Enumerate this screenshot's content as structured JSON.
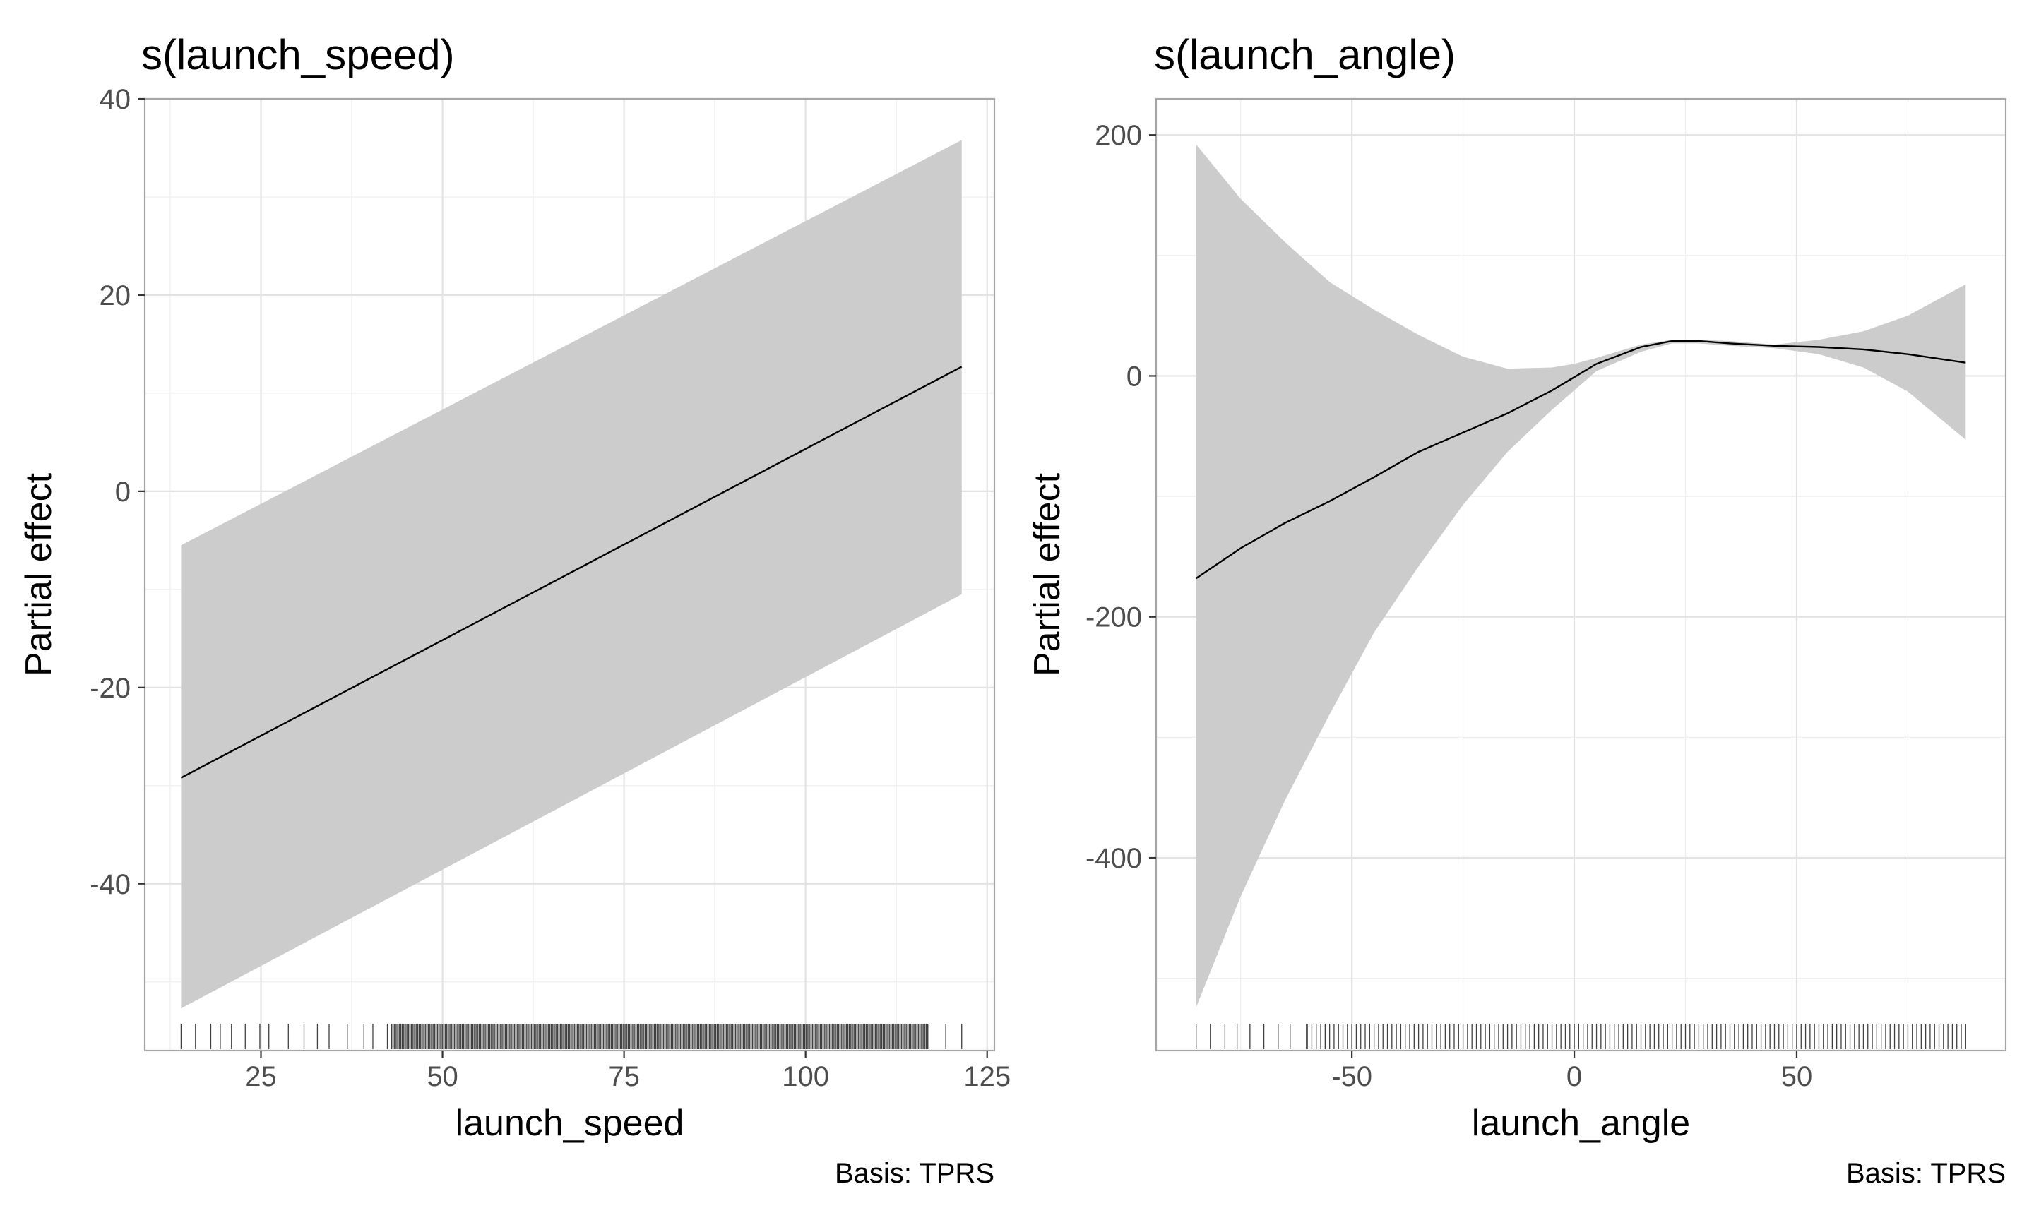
{
  "chart_data": [
    {
      "type": "line",
      "title": "s(launch_speed)",
      "xlabel": "launch_speed",
      "ylabel": "Partial effect",
      "caption": "Basis: TPRS",
      "xlim": [
        9,
        126
      ],
      "ylim": [
        -57,
        40
      ],
      "x_ticks": [
        25,
        50,
        75,
        100,
        125
      ],
      "x_tick_labels": [
        "25",
        "50",
        "75",
        "100",
        "125"
      ],
      "y_ticks": [
        -40,
        -20,
        0,
        20,
        40
      ],
      "y_tick_labels": [
        "-40",
        "-20",
        "0",
        "20",
        "40"
      ],
      "grid": true,
      "line": {
        "x": [
          14,
          121.5
        ],
        "y": [
          -29.2,
          12.7
        ]
      },
      "ribbon": {
        "x": [
          14,
          121.5
        ],
        "lower": [
          -52.7,
          -10.5
        ],
        "upper": [
          -5.5,
          35.8
        ]
      },
      "rug_range": [
        14,
        121.5
      ],
      "rug_dense_range": [
        43,
        117
      ],
      "colors": {
        "line": "#000000",
        "ribbon": "#cccccc",
        "grid": "#e3e3e3",
        "border": "#a6a6a6"
      }
    },
    {
      "type": "line",
      "title": "s(launch_angle)",
      "xlabel": "launch_angle",
      "ylabel": "Partial effect",
      "caption": "Basis: TPRS",
      "xlim": [
        -94,
        97
      ],
      "ylim": [
        -560,
        230
      ],
      "x_ticks": [
        -50,
        0,
        50
      ],
      "x_tick_labels": [
        "-50",
        "0",
        "50"
      ],
      "y_ticks": [
        -400,
        -200,
        0,
        200
      ],
      "y_tick_labels": [
        "-400",
        "-200",
        "0",
        "200"
      ],
      "grid": true,
      "line": {
        "x": [
          -85,
          -75,
          -65,
          -55,
          -45,
          -35,
          -25,
          -15,
          -5,
          0,
          5,
          15,
          22,
          28,
          35,
          45,
          55,
          65,
          75,
          88
        ],
        "y": [
          -168,
          -143,
          -122,
          -104,
          -84,
          -63,
          -47,
          -31,
          -12,
          -1,
          10,
          24,
          29,
          29,
          27,
          25,
          24,
          22,
          18,
          11
        ]
      },
      "ribbon": {
        "x": [
          -85,
          -75,
          -65,
          -55,
          -45,
          -35,
          -25,
          -15,
          -5,
          0,
          5,
          15,
          22,
          28,
          35,
          45,
          55,
          65,
          75,
          88
        ],
        "lower": [
          -524,
          -432,
          -352,
          -281,
          -213,
          -158,
          -107,
          -63,
          -28,
          -12,
          4,
          20,
          27,
          27,
          25,
          23,
          18,
          7,
          -13,
          -53
        ],
        "upper": [
          192,
          147,
          111,
          78,
          55,
          34,
          16,
          6,
          7,
          10,
          15,
          26,
          30,
          30,
          29,
          26,
          30,
          37,
          50,
          76
        ]
      },
      "rug_range": [
        -85,
        88
      ],
      "rug_dense_range": [
        -60,
        88
      ],
      "colors": {
        "line": "#000000",
        "ribbon": "#cccccc",
        "grid": "#e3e3e3",
        "border": "#a6a6a6"
      }
    }
  ]
}
